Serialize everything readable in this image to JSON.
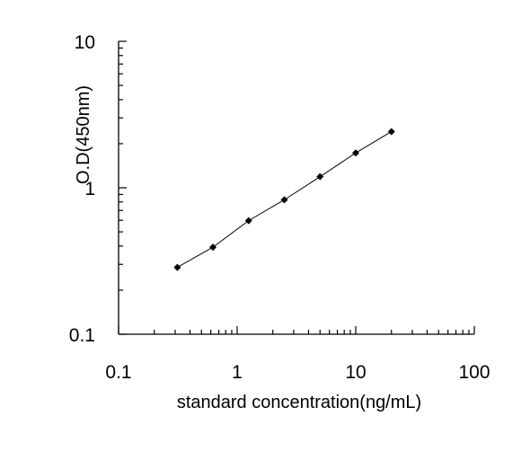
{
  "chart_data": {
    "type": "line",
    "xlabel": "standard concentration(ng/mL)",
    "ylabel": "O.D(450nm)",
    "x_scale": "log",
    "y_scale": "log",
    "xlim": [
      0.1,
      100
    ],
    "ylim": [
      0.1,
      10
    ],
    "x_ticks": [
      "0.1",
      "1",
      "10",
      "100"
    ],
    "y_ticks": [
      "0.1",
      "1",
      "10"
    ],
    "grid": false,
    "series": [
      {
        "x": [
          0.313,
          0.625,
          1.25,
          2.5,
          5,
          10,
          20
        ],
        "y": [
          0.286,
          0.393,
          0.596,
          0.828,
          1.19,
          1.73,
          2.42
        ]
      }
    ],
    "colors": {
      "line": "#000000",
      "marker": "#000000",
      "axis": "#000000"
    },
    "marker": "diamond"
  }
}
